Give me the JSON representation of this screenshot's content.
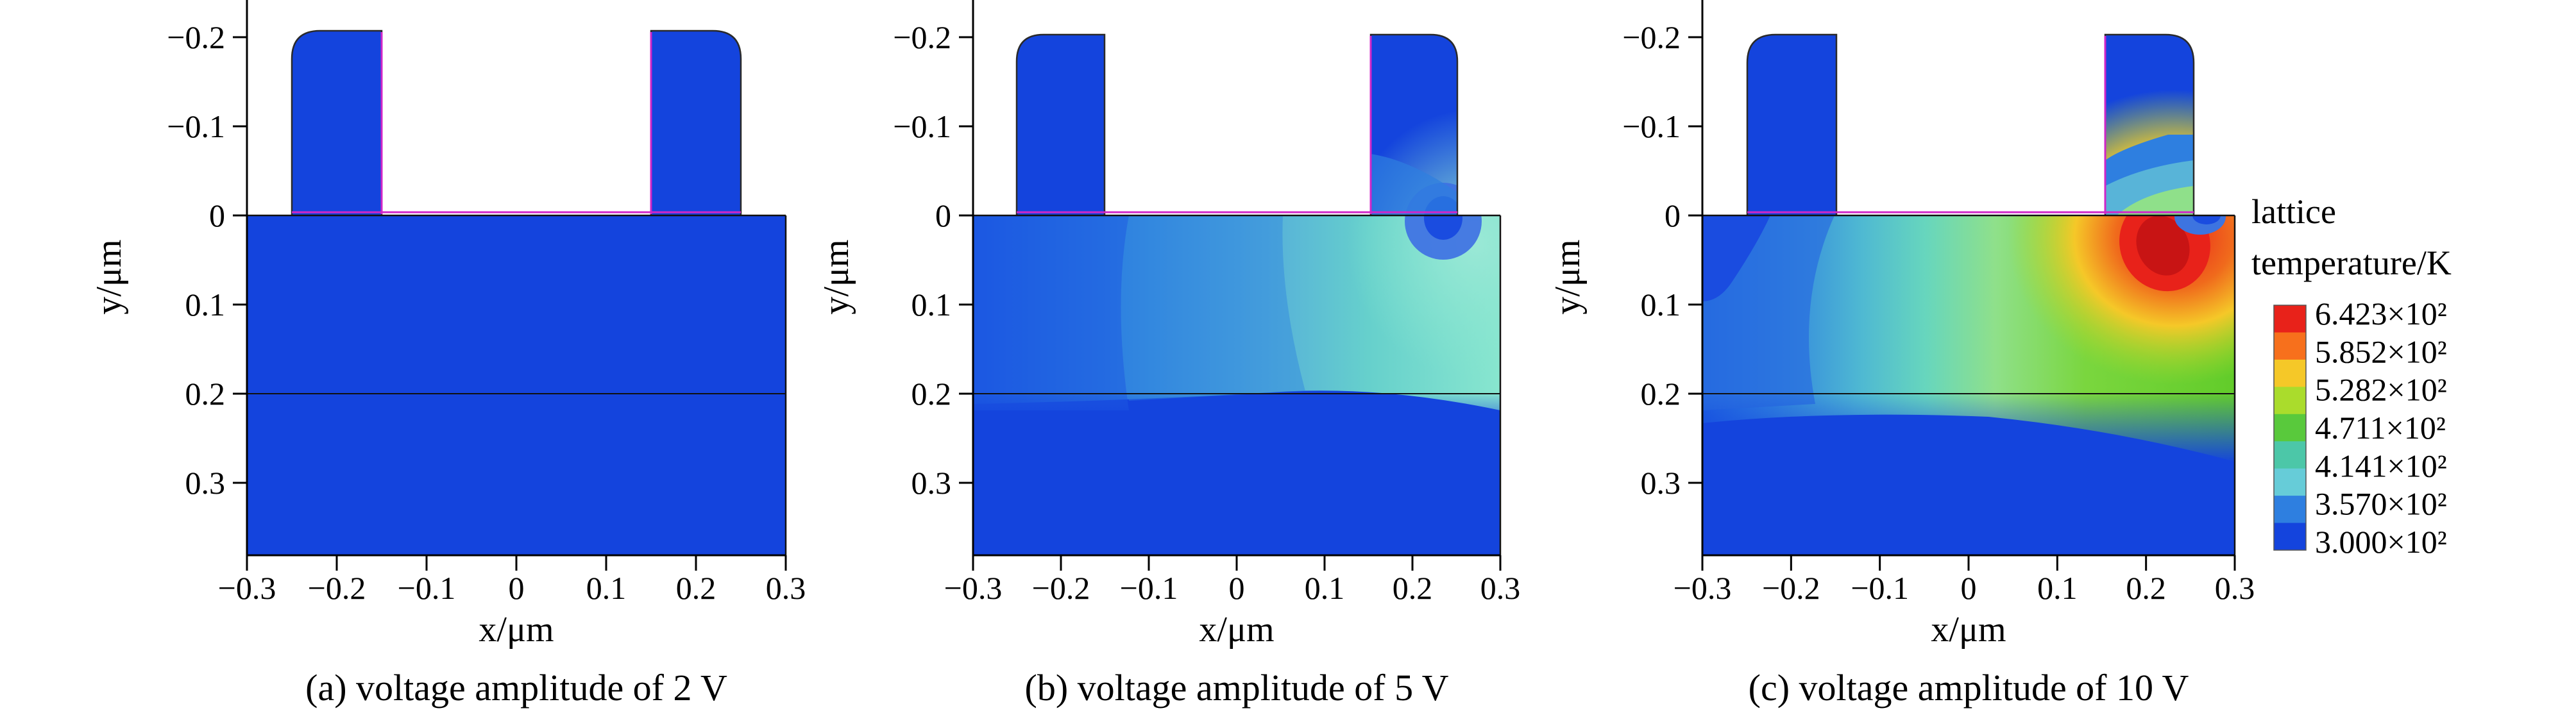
{
  "legend": {
    "title_line1": "lattice",
    "title_line2": "temperature/K",
    "labels": [
      "6.423×10²",
      "5.852×10²",
      "5.282×10²",
      "4.711×10²",
      "4.141×10²",
      "3.570×10²",
      "3.000×10²"
    ],
    "colors": [
      "#e8221a",
      "#f7701c",
      "#f5c828",
      "#aadc2c",
      "#59c93c",
      "#4cc7a8",
      "#66ccd8",
      "#2e7fe0",
      "#1444dd"
    ]
  },
  "axes": {
    "xlabel": "x/μm",
    "ylabel": "y/μm"
  },
  "chart_data": [
    {
      "type": "heatmap",
      "caption": "(a) voltage amplitude of 2 V",
      "x_ticks": [
        "−0.3",
        "−0.2",
        "−0.1",
        "0",
        "0.1",
        "0.2",
        "0.3"
      ],
      "x_tick_values": [
        -0.3,
        -0.2,
        -0.1,
        0,
        0.1,
        0.2,
        0.3
      ],
      "y_ticks": [
        "−0.2",
        "−0.1",
        "0",
        "0.1",
        "0.2",
        "0.3"
      ],
      "y_tick_values": [
        -0.2,
        -0.1,
        0,
        0.1,
        0.2,
        0.3
      ],
      "xlim": [
        -0.3,
        0.3
      ],
      "ylim": [
        -0.24,
        0.38
      ],
      "colorbar_range_K": [
        300.0,
        642.3
      ],
      "peak_temperature_K": 300,
      "hotspot": null
    },
    {
      "type": "heatmap",
      "caption": "(b) voltage amplitude of 5 V",
      "x_ticks": [
        "−0.3",
        "−0.2",
        "−0.1",
        "0",
        "0.1",
        "0.2",
        "0.3"
      ],
      "x_tick_values": [
        -0.3,
        -0.2,
        -0.1,
        0,
        0.1,
        0.2,
        0.3
      ],
      "y_ticks": [
        "−0.2",
        "−0.1",
        "0",
        "0.1",
        "0.2",
        "0.3"
      ],
      "y_tick_values": [
        -0.2,
        -0.1,
        0,
        0.1,
        0.2,
        0.3
      ],
      "xlim": [
        -0.3,
        0.3
      ],
      "ylim": [
        -0.24,
        0.38
      ],
      "colorbar_range_K": [
        300.0,
        642.3
      ],
      "peak_temperature_K": 380,
      "hotspot": [
        0.2,
        0.05
      ]
    },
    {
      "type": "heatmap",
      "caption": "(c) voltage amplitude of 10 V",
      "x_ticks": [
        "−0.3",
        "−0.2",
        "−0.1",
        "0",
        "0.1",
        "0.2",
        "0.3"
      ],
      "x_tick_values": [
        -0.3,
        -0.2,
        -0.1,
        0,
        0.1,
        0.2,
        0.3
      ],
      "y_ticks": [
        "−0.2",
        "−0.1",
        "0",
        "0.1",
        "0.2",
        "0.3"
      ],
      "y_tick_values": [
        -0.2,
        -0.1,
        0,
        0.1,
        0.2,
        0.3
      ],
      "xlim": [
        -0.3,
        0.3
      ],
      "ylim": [
        -0.24,
        0.38
      ],
      "colorbar_range_K": [
        300.0,
        642.3
      ],
      "peak_temperature_K": 642.3,
      "hotspot": [
        0.21,
        0.03
      ]
    }
  ]
}
